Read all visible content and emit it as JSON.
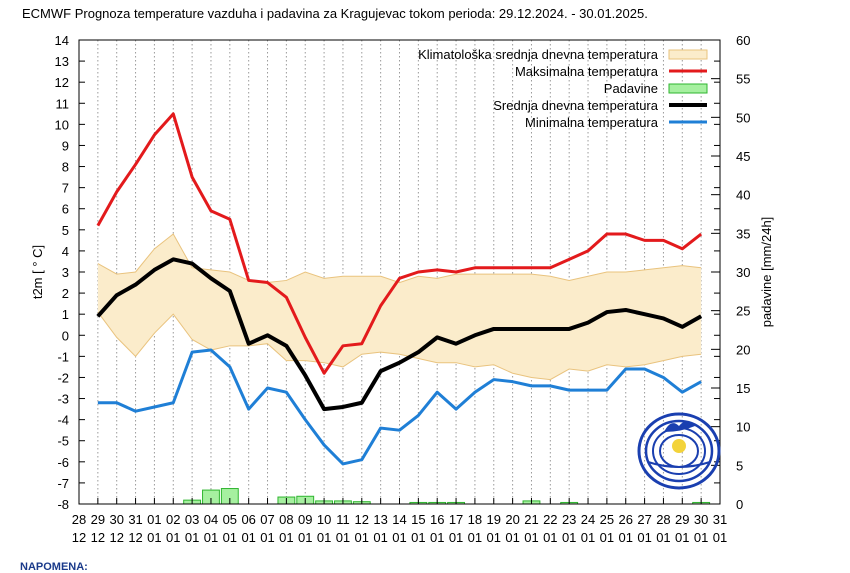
{
  "colors": {
    "climate_fill": "#fbeccb",
    "climate_edge": "#e9c37e",
    "max": "#e31a1c",
    "mean": "#000000",
    "min": "#1f7fd6",
    "precip_fill": "#a6f0a0",
    "precip_edge": "#2fb52f",
    "grid": "#9a9a9a"
  },
  "footer": "NAPOMENA:",
  "chart_data": {
    "type": "line",
    "title": "ECMWF Prognoza temperature vazduha i padavina za Kragujevac tokom perioda: 29.12.2024. - 30.01.2025.",
    "ylabel": "t2m [ ° C]",
    "y2label": "padavine [mm/24h]",
    "ylim": [
      -8,
      14
    ],
    "y2lim": [
      0,
      60
    ],
    "yticks": [
      "-8",
      "-7",
      "-6",
      "-5",
      "-4",
      "-3",
      "-2",
      "-1",
      "0",
      "1",
      "2",
      "3",
      "4",
      "5",
      "6",
      "7",
      "8",
      "9",
      "10",
      "11",
      "12",
      "13",
      "14"
    ],
    "y2ticks": [
      "0",
      "5",
      "10",
      "15",
      "20",
      "25",
      "30",
      "35",
      "40",
      "45",
      "50",
      "55",
      "60"
    ],
    "x_day_labels": [
      "28",
      "29",
      "30",
      "31",
      "01",
      "02",
      "03",
      "04",
      "05",
      "06",
      "07",
      "08",
      "09",
      "10",
      "11",
      "12",
      "13",
      "14",
      "15",
      "16",
      "17",
      "18",
      "19",
      "20",
      "21",
      "22",
      "23",
      "24",
      "25",
      "26",
      "27",
      "28",
      "29",
      "30",
      "31"
    ],
    "x_month_labels": [
      "12",
      "12",
      "12",
      "12",
      "01",
      "01",
      "01",
      "01",
      "01",
      "01",
      "01",
      "01",
      "01",
      "01",
      "01",
      "01",
      "01",
      "01",
      "01",
      "01",
      "01",
      "01",
      "01",
      "01",
      "01",
      "01",
      "01",
      "01",
      "01",
      "01",
      "01",
      "01",
      "01",
      "01",
      "01"
    ],
    "legend": [
      {
        "key": "climate",
        "label": "Klimatološka srednja dnevna temperatura"
      },
      {
        "key": "max",
        "label": "Maksimalna temperatura"
      },
      {
        "key": "precip",
        "label": "Padavine"
      },
      {
        "key": "mean",
        "label": "Srednja dnevna temperatura"
      },
      {
        "key": "min",
        "label": "Minimalna temperatura"
      }
    ],
    "x": [
      1,
      2,
      3,
      4,
      5,
      6,
      7,
      8,
      9,
      10,
      11,
      12,
      13,
      14,
      15,
      16,
      17,
      18,
      19,
      20,
      21,
      22,
      23,
      24,
      25,
      26,
      27,
      28,
      29,
      30,
      31,
      32,
      33
    ],
    "series": [
      {
        "name": "Maksimalna temperatura",
        "key": "max",
        "values": [
          5.2,
          6.8,
          8.1,
          9.5,
          10.5,
          7.5,
          5.9,
          5.5,
          2.6,
          2.5,
          1.8,
          -0.1,
          -1.8,
          -0.5,
          -0.4,
          1.4,
          2.7,
          3.0,
          3.1,
          3.0,
          3.2,
          3.2,
          3.2,
          3.2,
          3.2,
          3.6,
          4.0,
          4.8,
          4.8,
          4.5,
          4.5,
          4.1,
          4.8
        ]
      },
      {
        "name": "Srednja dnevna temperatura",
        "key": "mean",
        "values": [
          0.9,
          1.9,
          2.4,
          3.1,
          3.6,
          3.4,
          2.7,
          2.1,
          -0.4,
          0.0,
          -0.5,
          -1.9,
          -3.5,
          -3.4,
          -3.2,
          -1.7,
          -1.3,
          -0.8,
          -0.1,
          -0.4,
          0.0,
          0.3,
          0.3,
          0.3,
          0.3,
          0.3,
          0.6,
          1.1,
          1.2,
          1.0,
          0.8,
          0.4,
          0.9
        ]
      },
      {
        "name": "Minimalna temperatura",
        "key": "min",
        "values": [
          -3.2,
          -3.2,
          -3.6,
          -3.4,
          -3.2,
          -0.8,
          -0.7,
          -1.5,
          -3.5,
          -2.5,
          -2.7,
          -4.0,
          -5.2,
          -6.1,
          -5.9,
          -4.4,
          -4.5,
          -3.8,
          -2.7,
          -3.5,
          -2.7,
          -2.1,
          -2.2,
          -2.4,
          -2.4,
          -2.6,
          -2.6,
          -2.6,
          -1.6,
          -1.6,
          -2.0,
          -2.7,
          -2.2
        ]
      }
    ],
    "climate_band": {
      "upper": [
        3.4,
        2.9,
        3.0,
        4.1,
        4.8,
        3.2,
        3.1,
        3.0,
        2.6,
        2.5,
        2.6,
        3.0,
        2.7,
        2.8,
        2.8,
        2.8,
        2.5,
        2.8,
        2.7,
        2.9,
        2.9,
        2.9,
        2.9,
        2.9,
        2.8,
        2.6,
        2.8,
        3.0,
        3.0,
        3.1,
        3.2,
        3.3,
        3.2
      ],
      "lower": [
        1.1,
        -0.1,
        -1.0,
        0.1,
        1.0,
        -0.2,
        -0.7,
        -0.5,
        -0.5,
        -0.4,
        -1.2,
        -1.2,
        -1.3,
        -1.5,
        -0.9,
        -0.8,
        -0.9,
        -1.1,
        -1.3,
        -1.3,
        -1.5,
        -1.4,
        -1.8,
        -2.0,
        -2.1,
        -1.6,
        -1.7,
        -1.4,
        -1.5,
        -1.4,
        -1.2,
        -1.0,
        -0.9
      ]
    },
    "precipitation": {
      "x": [
        6,
        7,
        8,
        11,
        12,
        13,
        14,
        15,
        18,
        19,
        20,
        24,
        26,
        33
      ],
      "values": [
        0.5,
        1.8,
        2.0,
        0.9,
        1.0,
        0.4,
        0.4,
        0.3,
        0.2,
        0.2,
        0.2,
        0.4,
        0.2,
        0.2
      ]
    }
  }
}
